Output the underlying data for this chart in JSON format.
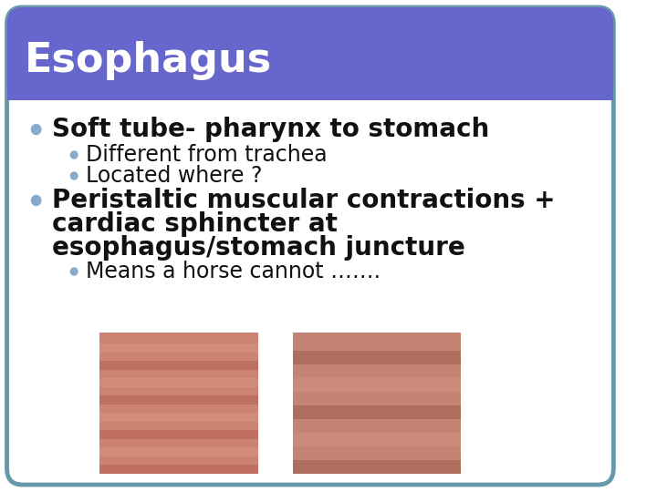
{
  "title": "Esophagus",
  "title_bg": "#6666cc",
  "title_text_color": "#ffffff",
  "slide_bg": "#ffffff",
  "border_color": "#6699aa",
  "bullet1": "Soft tube- pharynx to stomach",
  "sub_bullet1a": "Different from trachea",
  "sub_bullet1b": "Located where ?",
  "bullet2_line1": "Peristaltic muscular contractions +",
  "bullet2_line2": "cardiac sphincter at",
  "bullet2_line3": "esophagus/stomach juncture",
  "sub_bullet2a": "Means a horse cannot …….",
  "bullet_color": "#88aacc",
  "sub_bullet_color": "#88aacc",
  "text_color": "#111111",
  "bullet1_fontsize": 20,
  "bullet2_fontsize": 20,
  "sub_fontsize": 17,
  "title_fontsize": 32
}
